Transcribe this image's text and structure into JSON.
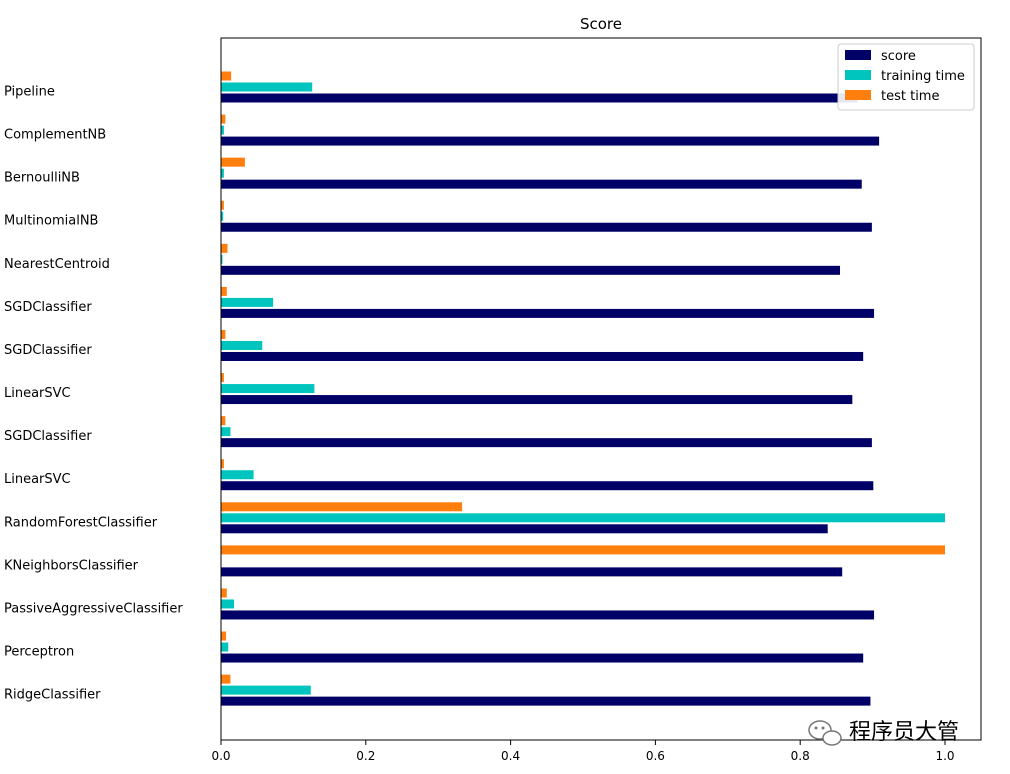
{
  "chart_data": {
    "type": "bar",
    "orientation": "horizontal",
    "title": "Score",
    "xlabel": "",
    "ylabel": "",
    "xlim": [
      0,
      1.05
    ],
    "xticks": [
      0.0,
      0.2,
      0.4,
      0.6,
      0.8,
      1.0
    ],
    "xtick_labels": [
      "0.0",
      "0.2",
      "0.4",
      "0.6",
      "0.8",
      "1.0"
    ],
    "grid": false,
    "legend_position": "top-right",
    "categories": [
      "Pipeline",
      "ComplementNB",
      "BernoulliNB",
      "MultinomialNB",
      "NearestCentroid",
      "SGDClassifier",
      "SGDClassifier",
      "LinearSVC",
      "SGDClassifier",
      "LinearSVC",
      "RandomForestClassifier",
      "KNeighborsClassifier",
      "PassiveAggressiveClassifier",
      "Perceptron",
      "RidgeClassifier"
    ],
    "series": [
      {
        "name": "score",
        "color": "#000066",
        "values": [
          0.879,
          0.909,
          0.885,
          0.899,
          0.855,
          0.902,
          0.887,
          0.872,
          0.899,
          0.901,
          0.838,
          0.858,
          0.902,
          0.887,
          0.897
        ]
      },
      {
        "name": "training time",
        "color": "#00c5be",
        "values": [
          0.126,
          0.004,
          0.004,
          0.003,
          0.002,
          0.072,
          0.057,
          0.129,
          0.013,
          0.045,
          1.0,
          0.0,
          0.018,
          0.01,
          0.124
        ]
      },
      {
        "name": "test time",
        "color": "#ff7f0e",
        "values": [
          0.014,
          0.006,
          0.033,
          0.004,
          0.009,
          0.008,
          0.006,
          0.004,
          0.006,
          0.004,
          0.333,
          1.0,
          0.008,
          0.007,
          0.013
        ]
      }
    ]
  },
  "watermark": {
    "icon": "wechat-icon",
    "text": "程序员大管"
  }
}
